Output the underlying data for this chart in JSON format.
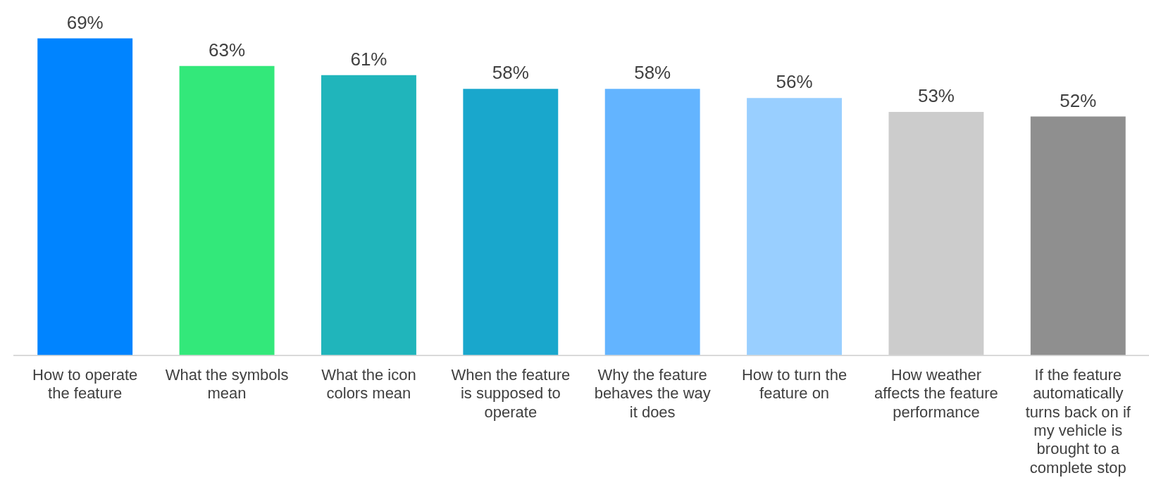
{
  "chart_data": {
    "type": "bar",
    "categories": [
      "How to operate the feature",
      "What the symbols mean",
      "What the icon colors mean",
      "When the feature is supposed to operate",
      "Why the feature behaves the way it does",
      "How to turn the feature on",
      "How weather affects the feature performance",
      "If the feature automatically turns back on if my vehicle is brought to a complete stop"
    ],
    "values": [
      69,
      63,
      61,
      58,
      58,
      56,
      53,
      52
    ],
    "colors": [
      "#0084ff",
      "#33e87a",
      "#20b5bb",
      "#19a7cc",
      "#63b4ff",
      "#99cfff",
      "#cccccc",
      "#8f8f8f"
    ],
    "value_labels": [
      "69%",
      "63%",
      "61%",
      "58%",
      "58%",
      "56%",
      "53%",
      "52%"
    ],
    "tick_labels": "x",
    "grid": false,
    "legend": false
  }
}
